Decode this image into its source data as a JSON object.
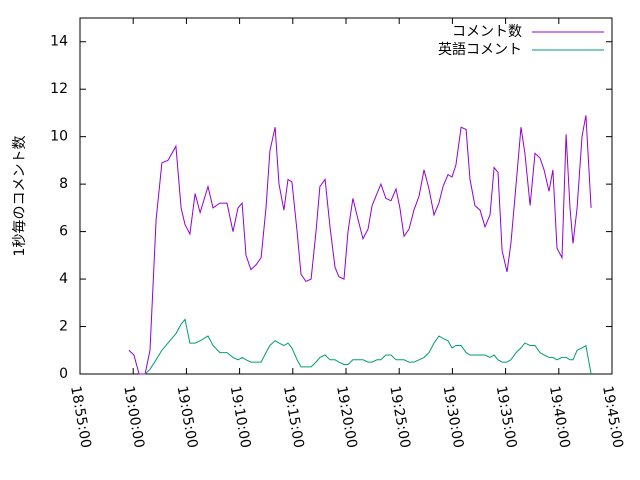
{
  "chart_data": {
    "type": "line",
    "ylabel": "1秒毎のコメント数",
    "x": [
      "18:59:36",
      "19:00:04",
      "19:00:33",
      "19:01:07",
      "19:01:35",
      "19:02:09",
      "19:02:42",
      "19:03:16",
      "19:04:01",
      "19:04:30",
      "19:04:52",
      "19:05:20",
      "19:05:49",
      "19:06:17",
      "19:07:02",
      "19:07:30",
      "19:08:09",
      "19:08:49",
      "19:09:23",
      "19:09:51",
      "19:10:14",
      "19:10:36",
      "19:11:04",
      "19:11:33",
      "19:12:01",
      "19:12:29",
      "19:12:51",
      "19:13:20",
      "19:13:42",
      "19:14:10",
      "19:14:33",
      "19:14:55",
      "19:15:24",
      "19:15:46",
      "19:16:14",
      "19:16:43",
      "19:17:11",
      "19:17:33",
      "19:18:02",
      "19:18:30",
      "19:18:58",
      "19:19:20",
      "19:19:49",
      "19:20:11",
      "19:20:39",
      "19:21:08",
      "19:21:36",
      "19:22:04",
      "19:22:27",
      "19:22:55",
      "19:23:17",
      "19:23:45",
      "19:24:14",
      "19:24:42",
      "19:25:04",
      "19:25:27",
      "19:25:55",
      "19:26:23",
      "19:26:52",
      "19:27:20",
      "19:27:48",
      "19:28:16",
      "19:28:44",
      "19:29:07",
      "19:29:35",
      "19:29:58",
      "19:30:20",
      "19:30:49",
      "19:31:17",
      "19:31:39",
      "19:32:07",
      "19:32:36",
      "19:33:04",
      "19:33:32",
      "19:33:55",
      "19:34:17",
      "19:34:40",
      "19:35:08",
      "19:35:30",
      "19:35:59",
      "19:36:27",
      "19:36:49",
      "19:37:18",
      "19:37:46",
      "19:38:14",
      "19:38:37",
      "19:39:05",
      "19:39:27",
      "19:39:50",
      "19:40:18",
      "19:40:41",
      "19:41:03",
      "19:41:20",
      "19:41:43",
      "19:42:11",
      "19:42:33",
      "19:43:02"
    ],
    "series": [
      {
        "name": "コメント数",
        "color": "#9400d3",
        "values": [
          1.0,
          0.8,
          0,
          0,
          1.0,
          6.5,
          8.9,
          9.0,
          9.6,
          7.0,
          6.3,
          5.9,
          7.6,
          6.8,
          7.9,
          7.0,
          7.2,
          7.2,
          6.0,
          7.0,
          7.2,
          5.0,
          4.4,
          4.6,
          4.9,
          7.0,
          9.4,
          10.4,
          8.0,
          6.9,
          8.2,
          8.1,
          6.0,
          4.2,
          3.9,
          4.0,
          6.0,
          7.9,
          8.2,
          6.2,
          4.5,
          4.1,
          4.0,
          6.0,
          7.4,
          6.5,
          5.7,
          6.1,
          7.1,
          7.6,
          8.0,
          7.4,
          7.3,
          7.8,
          7.0,
          5.8,
          6.1,
          6.9,
          7.5,
          8.6,
          7.8,
          6.7,
          7.2,
          7.9,
          8.4,
          8.3,
          8.8,
          10.4,
          10.3,
          8.2,
          7.1,
          6.9,
          6.2,
          6.7,
          8.7,
          8.5,
          5.2,
          4.3,
          5.5,
          8.0,
          10.4,
          9.3,
          7.1,
          9.3,
          9.1,
          8.6,
          7.7,
          8.6,
          5.3,
          4.9,
          10.1,
          7.0,
          5.5,
          7.0,
          10.0,
          10.9,
          7.0
        ]
      },
      {
        "name": "英語コメント",
        "color": "#009e73",
        "values": [
          null,
          null,
          null,
          0,
          0.2,
          0.6,
          1.0,
          1.3,
          1.7,
          2.1,
          2.3,
          1.3,
          1.3,
          1.4,
          1.6,
          1.2,
          0.9,
          0.9,
          0.7,
          0.6,
          0.7,
          0.6,
          0.5,
          0.5,
          0.5,
          0.9,
          1.2,
          1.4,
          1.3,
          1.2,
          1.3,
          1.1,
          0.6,
          0.3,
          0.3,
          0.3,
          0.5,
          0.7,
          0.8,
          0.6,
          0.6,
          0.5,
          0.4,
          0.4,
          0.6,
          0.6,
          0.6,
          0.5,
          0.5,
          0.6,
          0.6,
          0.8,
          0.8,
          0.6,
          0.6,
          0.6,
          0.5,
          0.5,
          0.6,
          0.7,
          0.9,
          1.3,
          1.6,
          1.5,
          1.4,
          1.1,
          1.2,
          1.2,
          0.9,
          0.8,
          0.8,
          0.8,
          0.8,
          0.7,
          0.8,
          0.6,
          0.5,
          0.5,
          0.6,
          0.9,
          1.1,
          1.3,
          1.2,
          1.2,
          0.9,
          0.8,
          0.7,
          0.7,
          0.6,
          0.7,
          0.7,
          0.6,
          0.6,
          1.0,
          1.1,
          1.2,
          0.0
        ]
      }
    ],
    "xlim": [
      "18:55:00",
      "19:45:00"
    ],
    "xticks": [
      "18:55:00",
      "19:00:00",
      "19:05:00",
      "19:10:00",
      "19:15:00",
      "19:20:00",
      "19:25:00",
      "19:30:00",
      "19:35:00",
      "19:40:00",
      "19:45:00"
    ],
    "ylim": [
      0,
      15
    ],
    "yticks": [
      0,
      2,
      4,
      6,
      8,
      10,
      12,
      14
    ],
    "legend": "top-right"
  }
}
